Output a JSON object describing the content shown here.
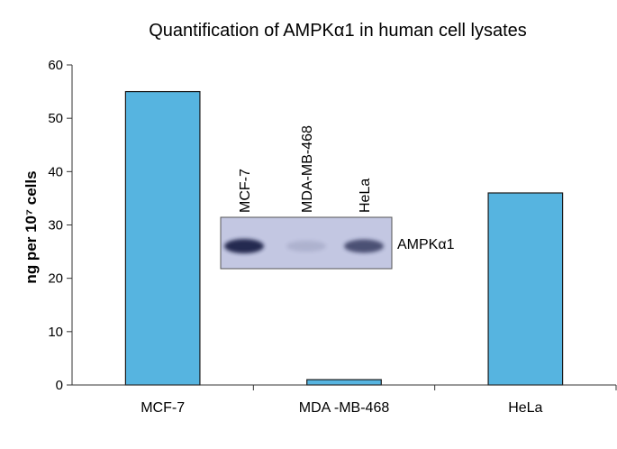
{
  "chart_data": {
    "type": "bar",
    "title": "Quantification of AMPKα1 in human cell lysates",
    "ylabel": "ng per 10⁷ cells",
    "xlabel": "",
    "categories": [
      "MCF-7",
      "MDA -MB-468",
      "HeLa"
    ],
    "values": [
      55,
      1,
      36
    ],
    "ylim": [
      0,
      60
    ],
    "yticks": [
      0,
      10,
      20,
      30,
      40,
      50,
      60
    ],
    "bar_color": "#56b4e0",
    "grid": false,
    "legend": "none",
    "inset_blot": {
      "lane_labels": [
        "MCF-7",
        "MDA-MB-468",
        "HeLa"
      ],
      "band_label": "AMPKα1",
      "band_intensity": [
        1.0,
        0.08,
        0.75
      ],
      "background_color": "#c3c7e2",
      "band_color": "#1e2348"
    }
  }
}
